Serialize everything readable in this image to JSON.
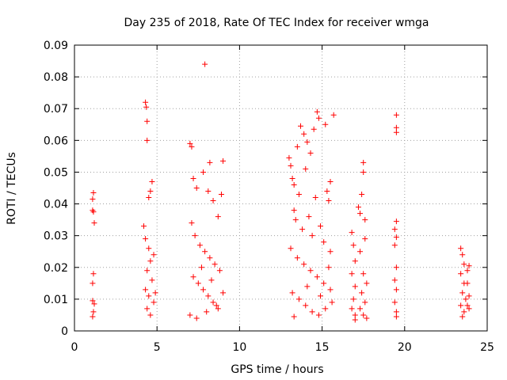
{
  "chart_data": {
    "type": "scatter",
    "title": "Day 235 of 2018, Rate Of TEC Index for receiver wmga",
    "xlabel": "GPS time / hours",
    "ylabel": "ROTI / TECUs",
    "xlim": [
      0,
      25
    ],
    "ylim": [
      0,
      0.09
    ],
    "xticks": [
      0,
      5,
      10,
      15,
      20,
      25
    ],
    "xtick_labels": [
      "0",
      "5",
      "10",
      "15",
      "20",
      "25"
    ],
    "yticks": [
      0,
      0.01,
      0.02,
      0.03,
      0.04,
      0.05,
      0.06,
      0.07,
      0.08,
      0.09
    ],
    "ytick_labels": [
      "0",
      "0.01",
      "0.02",
      "0.03",
      "0.04",
      "0.05",
      "0.06",
      "0.07",
      "0.08",
      "0.09"
    ],
    "grid": true,
    "marker": "plus",
    "marker_color": "#ff0000",
    "series": [
      {
        "values": [
          [
            1.1,
            0.0415
          ],
          [
            1.15,
            0.0435
          ],
          [
            1.1,
            0.038
          ],
          [
            1.15,
            0.0375
          ],
          [
            1.2,
            0.034
          ],
          [
            1.1,
            0.015
          ],
          [
            1.15,
            0.018
          ],
          [
            1.1,
            0.0095
          ],
          [
            1.2,
            0.0085
          ],
          [
            1.15,
            0.006
          ],
          [
            1.1,
            0.0045
          ],
          [
            4.3,
            0.072
          ],
          [
            4.35,
            0.0705
          ],
          [
            4.4,
            0.066
          ],
          [
            4.4,
            0.06
          ],
          [
            4.7,
            0.047
          ],
          [
            4.6,
            0.044
          ],
          [
            4.5,
            0.042
          ],
          [
            4.2,
            0.033
          ],
          [
            4.3,
            0.029
          ],
          [
            4.5,
            0.026
          ],
          [
            4.6,
            0.022
          ],
          [
            4.4,
            0.019
          ],
          [
            4.7,
            0.016
          ],
          [
            4.3,
            0.013
          ],
          [
            4.5,
            0.011
          ],
          [
            4.8,
            0.009
          ],
          [
            4.4,
            0.007
          ],
          [
            4.6,
            0.005
          ],
          [
            4.9,
            0.012
          ],
          [
            4.8,
            0.024
          ],
          [
            7.0,
            0.059
          ],
          [
            7.1,
            0.058
          ],
          [
            7.2,
            0.048
          ],
          [
            7.4,
            0.045
          ],
          [
            7.9,
            0.084
          ],
          [
            7.8,
            0.05
          ],
          [
            8.2,
            0.053
          ],
          [
            8.1,
            0.044
          ],
          [
            8.4,
            0.041
          ],
          [
            9.0,
            0.0535
          ],
          [
            8.9,
            0.043
          ],
          [
            8.7,
            0.036
          ],
          [
            7.1,
            0.034
          ],
          [
            7.3,
            0.03
          ],
          [
            7.6,
            0.027
          ],
          [
            7.9,
            0.025
          ],
          [
            8.2,
            0.023
          ],
          [
            8.5,
            0.021
          ],
          [
            8.8,
            0.019
          ],
          [
            7.2,
            0.017
          ],
          [
            7.5,
            0.015
          ],
          [
            7.8,
            0.013
          ],
          [
            8.1,
            0.011
          ],
          [
            8.4,
            0.009
          ],
          [
            8.7,
            0.007
          ],
          [
            7.0,
            0.005
          ],
          [
            7.4,
            0.004
          ],
          [
            8.0,
            0.006
          ],
          [
            8.6,
            0.008
          ],
          [
            9.0,
            0.012
          ],
          [
            8.3,
            0.016
          ],
          [
            7.7,
            0.02
          ],
          [
            13.0,
            0.0545
          ],
          [
            13.1,
            0.052
          ],
          [
            13.2,
            0.048
          ],
          [
            13.3,
            0.046
          ],
          [
            13.5,
            0.058
          ],
          [
            13.7,
            0.0645
          ],
          [
            13.9,
            0.062
          ],
          [
            14.1,
            0.0595
          ],
          [
            14.5,
            0.0635
          ],
          [
            14.7,
            0.069
          ],
          [
            14.8,
            0.067
          ],
          [
            15.2,
            0.065
          ],
          [
            15.7,
            0.068
          ],
          [
            14.3,
            0.056
          ],
          [
            14.0,
            0.051
          ],
          [
            13.6,
            0.043
          ],
          [
            13.3,
            0.038
          ],
          [
            15.5,
            0.047
          ],
          [
            15.3,
            0.044
          ],
          [
            15.4,
            0.041
          ],
          [
            14.6,
            0.042
          ],
          [
            13.4,
            0.035
          ],
          [
            13.8,
            0.032
          ],
          [
            14.2,
            0.036
          ],
          [
            14.4,
            0.03
          ],
          [
            14.9,
            0.033
          ],
          [
            15.1,
            0.028
          ],
          [
            15.5,
            0.025
          ],
          [
            13.1,
            0.026
          ],
          [
            13.5,
            0.023
          ],
          [
            13.9,
            0.021
          ],
          [
            14.3,
            0.019
          ],
          [
            14.7,
            0.017
          ],
          [
            15.1,
            0.015
          ],
          [
            15.5,
            0.013
          ],
          [
            13.2,
            0.012
          ],
          [
            13.6,
            0.01
          ],
          [
            14.0,
            0.008
          ],
          [
            14.4,
            0.006
          ],
          [
            14.8,
            0.005
          ],
          [
            15.2,
            0.007
          ],
          [
            15.6,
            0.009
          ],
          [
            13.3,
            0.0045
          ],
          [
            14.1,
            0.014
          ],
          [
            14.9,
            0.011
          ],
          [
            15.4,
            0.02
          ],
          [
            16.8,
            0.031
          ],
          [
            16.9,
            0.027
          ],
          [
            17.0,
            0.022
          ],
          [
            16.8,
            0.018
          ],
          [
            17.0,
            0.014
          ],
          [
            16.9,
            0.01
          ],
          [
            16.8,
            0.007
          ],
          [
            17.0,
            0.005
          ],
          [
            17.0,
            0.0035
          ],
          [
            17.2,
            0.039
          ],
          [
            17.3,
            0.037
          ],
          [
            17.5,
            0.053
          ],
          [
            17.5,
            0.05
          ],
          [
            17.4,
            0.043
          ],
          [
            17.6,
            0.035
          ],
          [
            17.6,
            0.029
          ],
          [
            17.3,
            0.025
          ],
          [
            17.5,
            0.018
          ],
          [
            17.7,
            0.015
          ],
          [
            17.4,
            0.012
          ],
          [
            17.6,
            0.009
          ],
          [
            17.3,
            0.007
          ],
          [
            17.5,
            0.005
          ],
          [
            17.7,
            0.004
          ],
          [
            19.5,
            0.068
          ],
          [
            19.5,
            0.064
          ],
          [
            19.5,
            0.0625
          ],
          [
            19.5,
            0.0345
          ],
          [
            19.4,
            0.032
          ],
          [
            19.5,
            0.0295
          ],
          [
            19.4,
            0.027
          ],
          [
            19.5,
            0.02
          ],
          [
            19.4,
            0.016
          ],
          [
            19.5,
            0.013
          ],
          [
            19.4,
            0.009
          ],
          [
            19.5,
            0.006
          ],
          [
            19.5,
            0.0045
          ],
          [
            23.4,
            0.026
          ],
          [
            23.5,
            0.024
          ],
          [
            23.6,
            0.021
          ],
          [
            23.4,
            0.018
          ],
          [
            23.6,
            0.015
          ],
          [
            23.5,
            0.012
          ],
          [
            23.7,
            0.01
          ],
          [
            23.4,
            0.008
          ],
          [
            23.6,
            0.006
          ],
          [
            23.5,
            0.0045
          ],
          [
            23.8,
            0.019
          ],
          [
            23.9,
            0.0205
          ],
          [
            23.8,
            0.015
          ],
          [
            23.9,
            0.011
          ],
          [
            23.8,
            0.008
          ],
          [
            23.9,
            0.007
          ]
        ]
      }
    ]
  }
}
